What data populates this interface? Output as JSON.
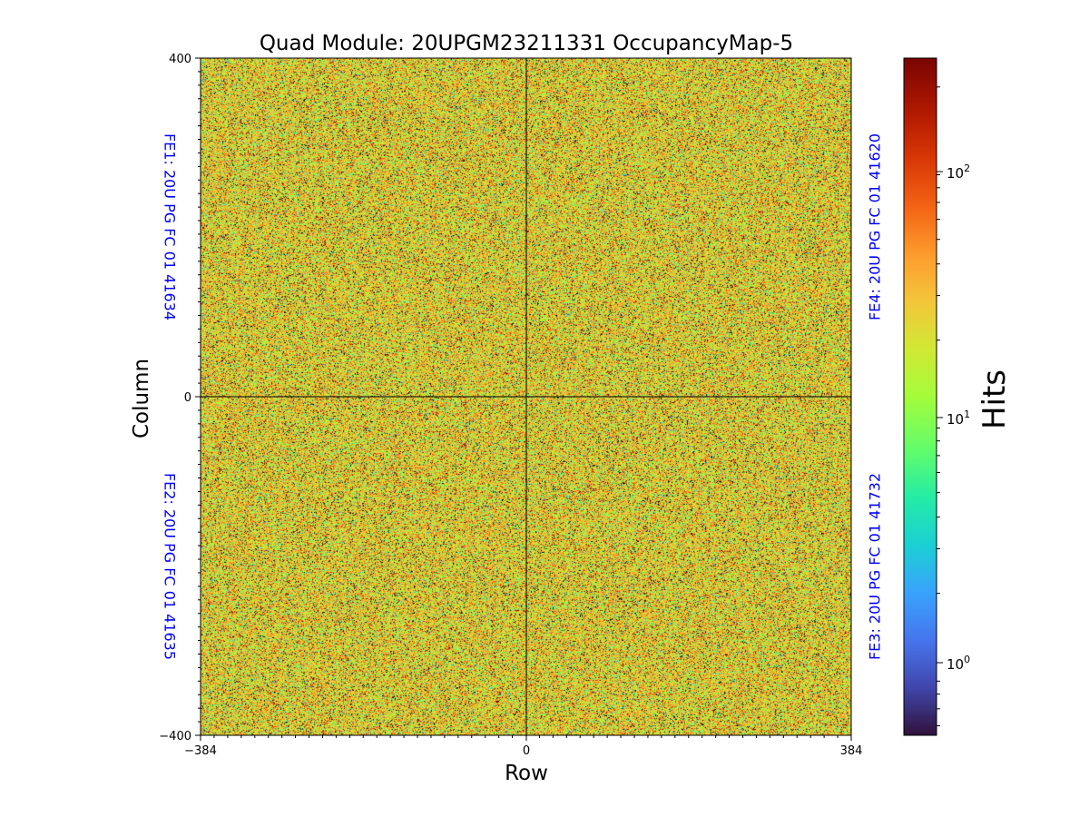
{
  "chart_data": {
    "type": "heatmap",
    "title": "Quad Module: 20UPGM23211331 OccupancyMap-5",
    "xlabel": "Row",
    "ylabel": "Column",
    "xlim": [
      -384,
      384
    ],
    "ylim": [
      -400,
      400
    ],
    "x_ticks": [
      {
        "value": -384,
        "label": "−384"
      },
      {
        "value": 0,
        "label": "0"
      },
      {
        "value": 384,
        "label": "384"
      }
    ],
    "y_ticks": [
      {
        "value": 400,
        "label": "400"
      },
      {
        "value": 0,
        "label": "0"
      },
      {
        "value": -400,
        "label": "−400"
      }
    ],
    "colorbar": {
      "label": "Hits",
      "scale": "log",
      "colormap": "turbo",
      "range": [
        0.55,
        260
      ],
      "ticks": [
        {
          "value": 1,
          "base": "10",
          "exp": "0"
        },
        {
          "value": 10,
          "base": "10",
          "exp": "1"
        },
        {
          "value": 100,
          "base": "10",
          "exp": "2"
        }
      ]
    },
    "frontends": [
      {
        "id": "FE1",
        "label": "FE1: 20U PG FC 01 41634",
        "quadrant": "top-left"
      },
      {
        "id": "FE2",
        "label": "FE2: 20U PG FC 01 41635",
        "quadrant": "bottom-left"
      },
      {
        "id": "FE3",
        "label": "FE3: 20U PG FC 01 41732",
        "quadrant": "bottom-right"
      },
      {
        "id": "FE4",
        "label": "FE4: 20U PG FC 01 41620",
        "quadrant": "top-right"
      }
    ],
    "typical_hits": 25,
    "quadrant_dividers": {
      "x": 0,
      "y": 0
    },
    "label_color": "#0000ff"
  }
}
